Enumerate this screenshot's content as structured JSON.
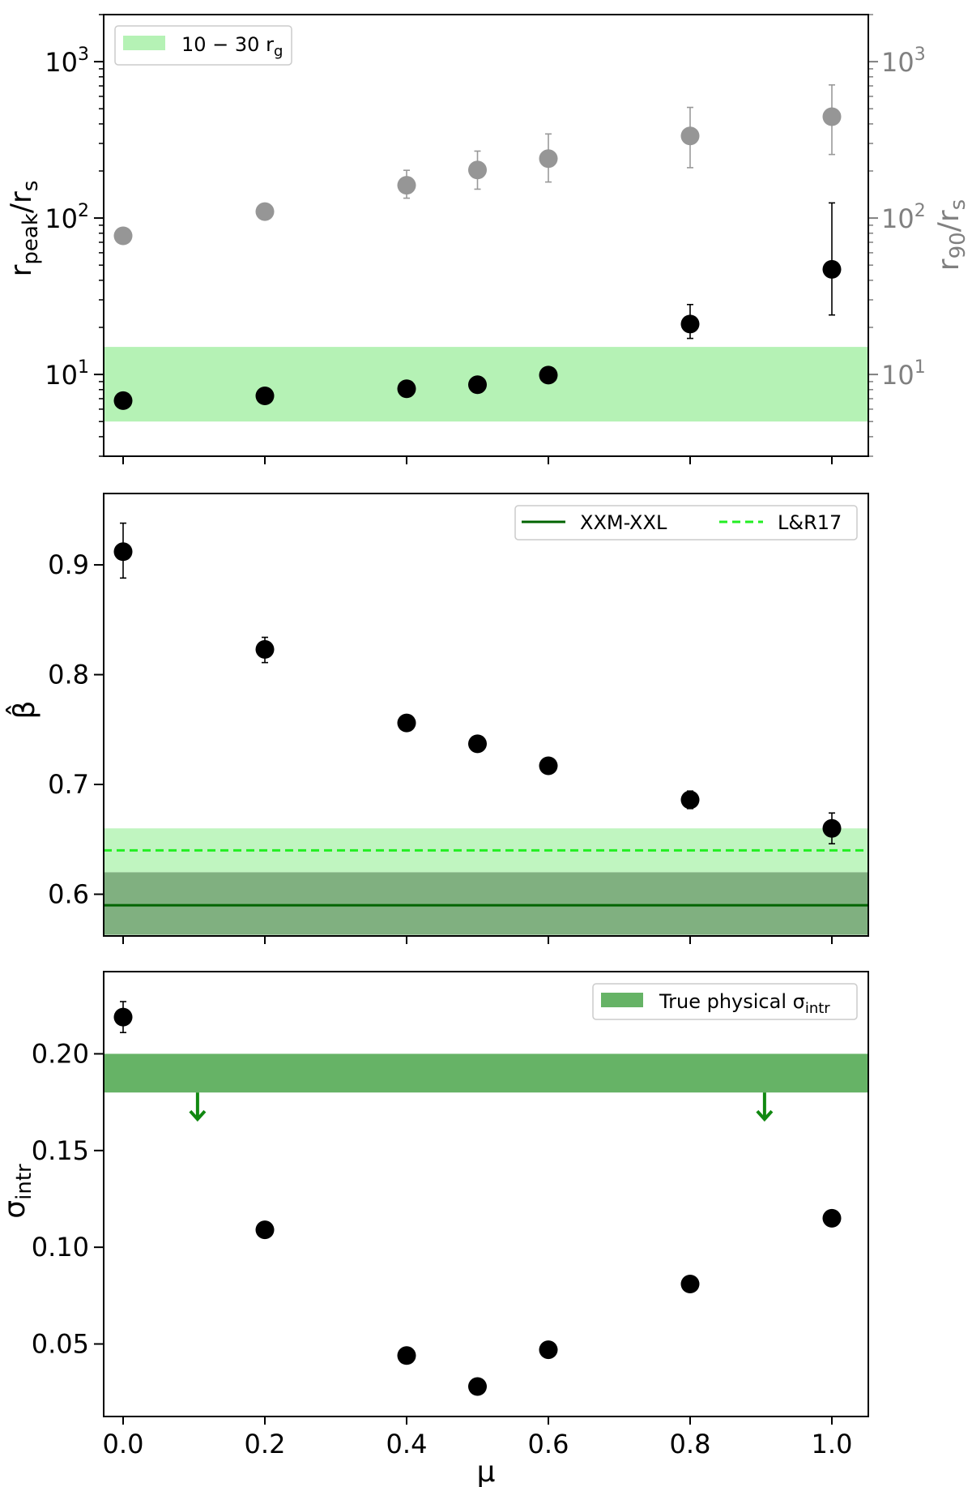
{
  "colors": {
    "points": "#000000",
    "grey_points": "#969696",
    "light_band": "#b5f2b5",
    "xxm_band": "#80b080",
    "xxm_line": "#006400",
    "lr17_line": "#22ee22",
    "lr17_band": "#c0f5c0",
    "true_band": "#66b366",
    "arrow": "#118811"
  },
  "chart_data": [
    {
      "type": "scatter",
      "panel": "top",
      "scale": "log",
      "ylabel": {
        "main": "r",
        "sub": "peak",
        "tail": "/r",
        "tail_sub": "s"
      },
      "ylabel_right": {
        "main": "r",
        "sub": "90",
        "tail": "/r",
        "tail_sub": "s"
      },
      "ylim": [
        3,
        2000
      ],
      "y_ticks": [
        {
          "value": 10,
          "base": "10",
          "exp": "1"
        },
        {
          "value": 100,
          "base": "10",
          "exp": "2"
        },
        {
          "value": 1000,
          "base": "10",
          "exp": "3"
        }
      ],
      "legend": {
        "band_label": {
          "main": "10 − 30 r",
          "sub": "g"
        }
      },
      "band": [
        5,
        15
      ],
      "series": [
        {
          "name": "r_peak",
          "x": [
            0.0,
            0.2,
            0.4,
            0.5,
            0.6,
            0.8,
            1.0
          ],
          "y": [
            6.8,
            7.3,
            8.1,
            8.6,
            9.9,
            21,
            47
          ],
          "err_low": [
            null,
            null,
            null,
            null,
            null,
            4,
            23
          ],
          "err_high": [
            null,
            null,
            null,
            null,
            null,
            7,
            78
          ]
        },
        {
          "name": "r_90",
          "x": [
            0.0,
            0.2,
            0.4,
            0.5,
            0.6,
            0.8,
            1.0
          ],
          "y": [
            77,
            110,
            162,
            203,
            240,
            335,
            445
          ],
          "err_low": [
            null,
            null,
            28,
            50,
            70,
            125,
            190
          ],
          "err_high": [
            null,
            null,
            40,
            65,
            105,
            175,
            265
          ]
        }
      ]
    },
    {
      "type": "scatter",
      "panel": "middle",
      "ylabel": "β̂",
      "ylim": [
        0.562,
        0.965
      ],
      "y_ticks": [
        "0.6",
        "0.7",
        "0.8",
        "0.9"
      ],
      "legend": {
        "solid_label": "XXM-XXL",
        "dashed_label": "L&R17"
      },
      "lr17": {
        "value": 0.64,
        "band": [
          0.62,
          0.66
        ]
      },
      "xxm_xxl": {
        "value": 0.59,
        "band": [
          0.563,
          0.62
        ]
      },
      "series": [
        {
          "name": "beta_hat",
          "x": [
            0.0,
            0.2,
            0.4,
            0.5,
            0.6,
            0.8,
            1.0
          ],
          "y": [
            0.912,
            0.823,
            0.756,
            0.737,
            0.717,
            0.686,
            0.66
          ],
          "err_low": [
            0.024,
            0.012,
            null,
            null,
            null,
            0.008,
            0.014
          ],
          "err_high": [
            0.026,
            0.011,
            null,
            null,
            null,
            0.008,
            0.014
          ]
        }
      ]
    },
    {
      "type": "scatter",
      "panel": "bottom",
      "ylabel": {
        "main": "σ",
        "sub": "intr"
      },
      "xlabel": "μ",
      "ylim": [
        0.0125,
        0.2425
      ],
      "y_ticks": [
        "0.05",
        "0.10",
        "0.15",
        "0.20"
      ],
      "x_ticks": [
        "0.0",
        "0.2",
        "0.4",
        "0.6",
        "0.8",
        "1.0"
      ],
      "legend": {
        "band_label": {
          "main": "True physical σ",
          "sub": "intr"
        }
      },
      "band": [
        0.18,
        0.2
      ],
      "arrows_x": [
        0.105,
        0.905
      ],
      "series": [
        {
          "name": "sigma_intr",
          "x": [
            0.0,
            0.2,
            0.4,
            0.5,
            0.6,
            0.8,
            1.0
          ],
          "y": [
            0.219,
            0.109,
            0.044,
            0.028,
            0.047,
            0.081,
            0.115
          ],
          "err_low": [
            0.008,
            null,
            null,
            null,
            null,
            null,
            null
          ],
          "err_high": [
            0.008,
            null,
            null,
            null,
            null,
            null,
            null
          ]
        }
      ]
    }
  ]
}
